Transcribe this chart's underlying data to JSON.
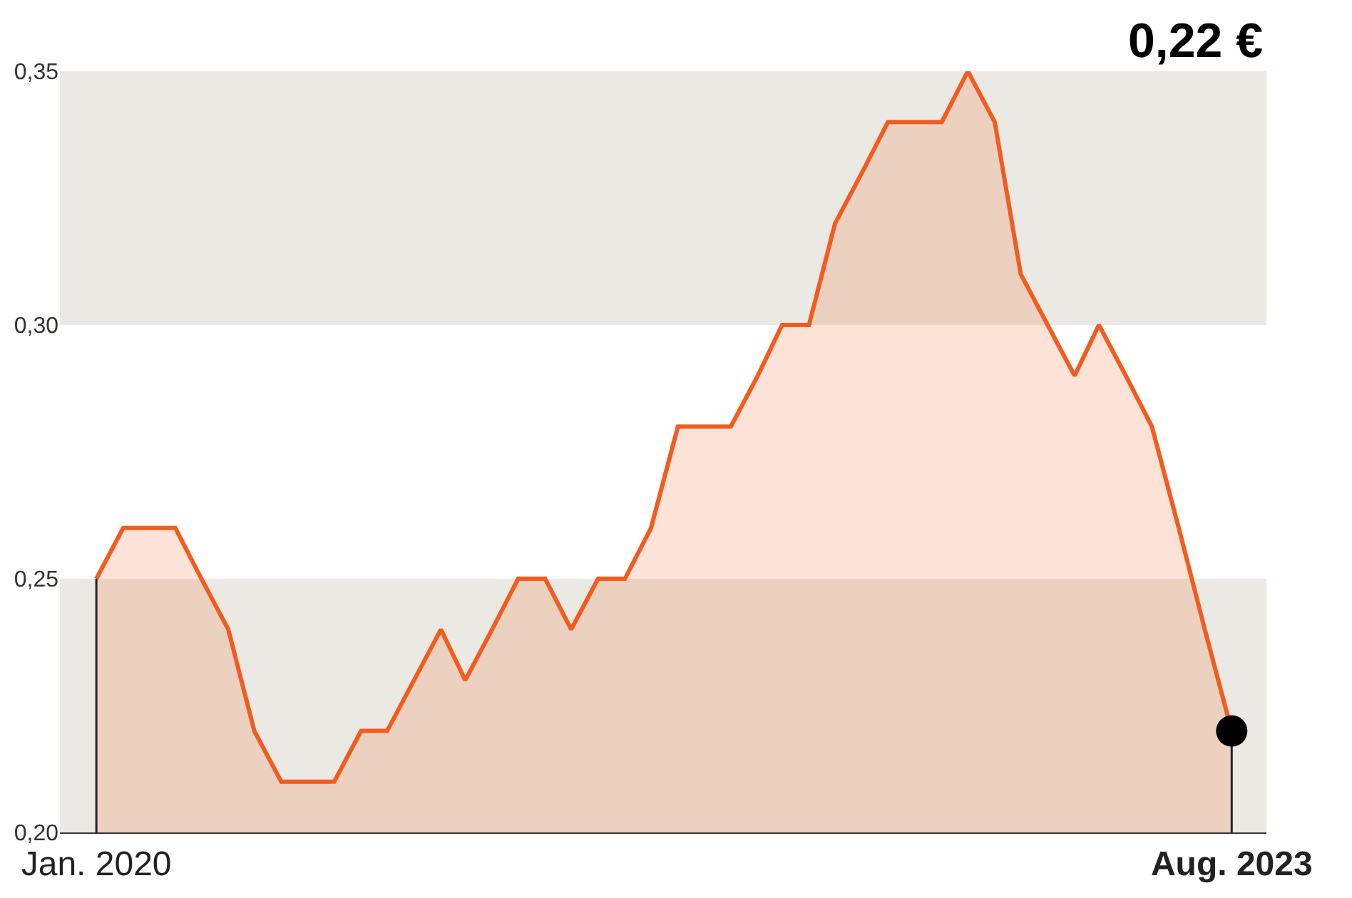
{
  "chart_data": {
    "type": "area",
    "x": [
      "2020-01",
      "2020-02",
      "2020-03",
      "2020-04",
      "2020-05",
      "2020-06",
      "2020-07",
      "2020-08",
      "2020-09",
      "2020-10",
      "2020-11",
      "2020-12",
      "2021-01",
      "2021-02",
      "2021-03",
      "2021-04",
      "2021-05",
      "2021-06",
      "2021-07",
      "2021-08",
      "2021-09",
      "2021-10",
      "2021-11",
      "2021-12",
      "2022-01",
      "2022-02",
      "2022-03",
      "2022-04",
      "2022-05",
      "2022-06",
      "2022-07",
      "2022-08",
      "2022-09",
      "2022-10",
      "2022-11",
      "2022-12",
      "2023-01",
      "2023-02",
      "2023-03",
      "2023-04",
      "2023-05",
      "2023-06",
      "2023-07",
      "2023-08"
    ],
    "series": [
      {
        "color": "#f25c1f",
        "values": [
          0.25,
          0.26,
          0.26,
          0.26,
          0.25,
          0.24,
          0.22,
          0.21,
          0.21,
          0.21,
          0.22,
          0.22,
          0.23,
          0.24,
          0.23,
          0.24,
          0.25,
          0.25,
          0.24,
          0.25,
          0.25,
          0.26,
          0.28,
          0.28,
          0.28,
          0.29,
          0.3,
          0.3,
          0.32,
          0.33,
          0.34,
          0.34,
          0.34,
          0.35,
          0.34,
          0.31,
          0.3,
          0.29,
          0.3,
          0.29,
          0.28,
          0.26,
          0.24,
          0.22
        ]
      },
      {
        "type": "line",
        "color": "#222222",
        "x": [
          "2020-01",
          "2020-01"
        ],
        "values": [
          0.2,
          0.25
        ]
      },
      {
        "type": "line",
        "color": "#222222",
        "x": [
          "2023-08",
          "2023-08"
        ],
        "values": [
          0.2,
          0.22
        ]
      },
      {
        "type": "scatter",
        "color": "#000000",
        "x": [
          "2023-08"
        ],
        "values": [
          0.22
        ]
      }
    ],
    "annotations": [
      "0,22 €"
    ],
    "xlim": [
      "2019-11-20",
      "2023-09-10"
    ],
    "xticks": [
      {
        "value": "2020-01",
        "label": "Jan. 2020"
      },
      {
        "value": "2023-08",
        "label": "Aug. 2023"
      }
    ],
    "ylim": [
      0.2,
      0.35
    ],
    "yticks": [
      {
        "value": 0.2,
        "label": "0,20"
      },
      {
        "value": 0.25,
        "label": "0,25"
      },
      {
        "value": 0.3,
        "label": "0,30"
      },
      {
        "value": 0.35,
        "label": "0,35"
      }
    ],
    "bands": [
      {
        "axis": "y",
        "from": 0.2,
        "to": 0.25,
        "color": "#ebe9e3"
      },
      {
        "axis": "y",
        "from": 0.3,
        "to": 0.35,
        "color": "#ebe9e3"
      }
    ],
    "grid": false,
    "legend": false
  }
}
